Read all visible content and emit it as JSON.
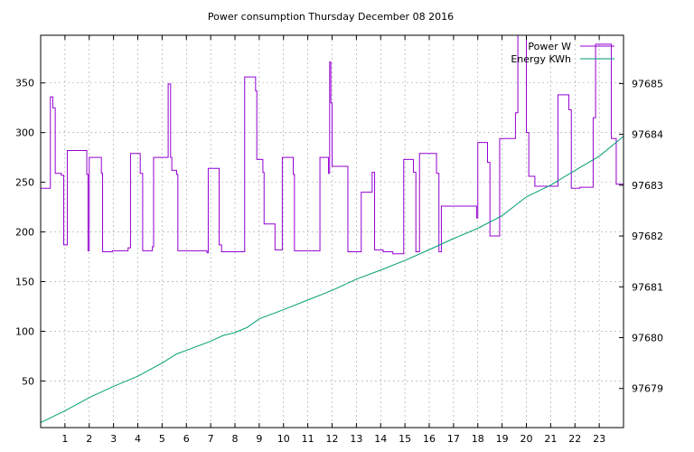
{
  "chart_data": {
    "type": "line",
    "title": "Power consumption Thursday December 08 2016",
    "x_ticks": [
      1,
      2,
      3,
      4,
      5,
      6,
      7,
      8,
      9,
      10,
      11,
      12,
      13,
      14,
      15,
      16,
      17,
      18,
      19,
      20,
      21,
      22,
      23
    ],
    "xlim": [
      0,
      24
    ],
    "y_left_ticks": [
      50,
      100,
      150,
      200,
      250,
      300,
      350
    ],
    "ylim_left": [
      3,
      398
    ],
    "y_right_ticks": [
      97679,
      97680,
      97681,
      97682,
      97683,
      97684,
      97685
    ],
    "ylim_right": [
      97678.23,
      97685.95
    ],
    "grid": true,
    "legend_position": "top-right",
    "series": [
      {
        "name": "Power W",
        "axis": "left",
        "color": "#9400d3",
        "style": "step",
        "points": [
          [
            0.0,
            244
          ],
          [
            0.4,
            244
          ],
          [
            0.4,
            336
          ],
          [
            0.5,
            336
          ],
          [
            0.5,
            325
          ],
          [
            0.6,
            325
          ],
          [
            0.6,
            259
          ],
          [
            0.85,
            259
          ],
          [
            0.85,
            257
          ],
          [
            0.95,
            257
          ],
          [
            0.95,
            187
          ],
          [
            1.1,
            187
          ],
          [
            1.1,
            282
          ],
          [
            1.9,
            282
          ],
          [
            1.9,
            258
          ],
          [
            1.95,
            258
          ],
          [
            1.95,
            181
          ],
          [
            2.0,
            181
          ],
          [
            2.0,
            275
          ],
          [
            2.5,
            275
          ],
          [
            2.5,
            259
          ],
          [
            2.55,
            259
          ],
          [
            2.55,
            180
          ],
          [
            2.95,
            180
          ],
          [
            2.95,
            181
          ],
          [
            3.6,
            181
          ],
          [
            3.6,
            184
          ],
          [
            3.7,
            184
          ],
          [
            3.7,
            279
          ],
          [
            4.1,
            279
          ],
          [
            4.1,
            259
          ],
          [
            4.2,
            259
          ],
          [
            4.2,
            181
          ],
          [
            4.6,
            181
          ],
          [
            4.6,
            185
          ],
          [
            4.65,
            185
          ],
          [
            4.65,
            275
          ],
          [
            5.25,
            275
          ],
          [
            5.25,
            349
          ],
          [
            5.35,
            349
          ],
          [
            5.35,
            275
          ],
          [
            5.4,
            275
          ],
          [
            5.4,
            262
          ],
          [
            5.6,
            262
          ],
          [
            5.6,
            258
          ],
          [
            5.65,
            258
          ],
          [
            5.65,
            181
          ],
          [
            6.85,
            181
          ],
          [
            6.85,
            179
          ],
          [
            6.9,
            179
          ],
          [
            6.9,
            264
          ],
          [
            7.35,
            264
          ],
          [
            7.35,
            187
          ],
          [
            7.45,
            187
          ],
          [
            7.45,
            180
          ],
          [
            8.4,
            180
          ],
          [
            8.4,
            356
          ],
          [
            8.85,
            356
          ],
          [
            8.85,
            342
          ],
          [
            8.9,
            342
          ],
          [
            8.9,
            273
          ],
          [
            9.15,
            273
          ],
          [
            9.15,
            260
          ],
          [
            9.2,
            260
          ],
          [
            9.2,
            208
          ],
          [
            9.65,
            208
          ],
          [
            9.65,
            182
          ],
          [
            9.95,
            182
          ],
          [
            9.95,
            275
          ],
          [
            10.4,
            275
          ],
          [
            10.4,
            258
          ],
          [
            10.45,
            258
          ],
          [
            10.45,
            181
          ],
          [
            11.5,
            181
          ],
          [
            11.5,
            275
          ],
          [
            11.85,
            275
          ],
          [
            11.85,
            259
          ],
          [
            11.9,
            259
          ],
          [
            11.9,
            371
          ],
          [
            11.95,
            371
          ],
          [
            11.95,
            330
          ],
          [
            12.0,
            330
          ],
          [
            12.0,
            266
          ],
          [
            12.65,
            266
          ],
          [
            12.65,
            180
          ],
          [
            13.2,
            180
          ],
          [
            13.2,
            240
          ],
          [
            13.65,
            240
          ],
          [
            13.65,
            260
          ],
          [
            13.75,
            260
          ],
          [
            13.75,
            182
          ],
          [
            14.1,
            182
          ],
          [
            14.1,
            180
          ],
          [
            14.5,
            180
          ],
          [
            14.5,
            178
          ],
          [
            14.95,
            178
          ],
          [
            14.95,
            273
          ],
          [
            15.35,
            273
          ],
          [
            15.35,
            260
          ],
          [
            15.45,
            260
          ],
          [
            15.45,
            180
          ],
          [
            15.6,
            180
          ],
          [
            15.6,
            279
          ],
          [
            16.3,
            279
          ],
          [
            16.3,
            259
          ],
          [
            16.4,
            259
          ],
          [
            16.4,
            180
          ],
          [
            16.5,
            180
          ],
          [
            16.5,
            226
          ],
          [
            17.95,
            226
          ],
          [
            17.95,
            214
          ],
          [
            18.0,
            214
          ],
          [
            18.0,
            290
          ],
          [
            18.4,
            290
          ],
          [
            18.4,
            270
          ],
          [
            18.5,
            270
          ],
          [
            18.5,
            196
          ],
          [
            18.9,
            196
          ],
          [
            18.9,
            294
          ],
          [
            19.55,
            294
          ],
          [
            19.55,
            320
          ],
          [
            19.65,
            320
          ],
          [
            19.65,
            398
          ],
          [
            20.0,
            398
          ],
          [
            20.0,
            300
          ],
          [
            20.1,
            300
          ],
          [
            20.1,
            256
          ],
          [
            20.35,
            256
          ],
          [
            20.35,
            246
          ],
          [
            21.3,
            246
          ],
          [
            21.3,
            338
          ],
          [
            21.75,
            338
          ],
          [
            21.75,
            323
          ],
          [
            21.85,
            323
          ],
          [
            21.85,
            244
          ],
          [
            22.2,
            244
          ],
          [
            22.2,
            245
          ],
          [
            22.75,
            245
          ],
          [
            22.75,
            315
          ],
          [
            22.85,
            315
          ],
          [
            22.85,
            389
          ],
          [
            23.5,
            389
          ],
          [
            23.5,
            294
          ],
          [
            23.7,
            294
          ],
          [
            23.7,
            248
          ],
          [
            24.0,
            248
          ]
        ]
      },
      {
        "name": "Energy KWh",
        "axis": "right",
        "color": "#009e73",
        "style": "line",
        "points": [
          [
            0.0,
            97678.33
          ],
          [
            1.0,
            97678.56
          ],
          [
            2.0,
            97678.82
          ],
          [
            3.0,
            97679.04
          ],
          [
            4.0,
            97679.24
          ],
          [
            5.0,
            97679.5
          ],
          [
            5.6,
            97679.68
          ],
          [
            6.0,
            97679.75
          ],
          [
            7.0,
            97679.93
          ],
          [
            7.5,
            97680.04
          ],
          [
            8.0,
            97680.1
          ],
          [
            8.5,
            97680.2
          ],
          [
            9.0,
            97680.37
          ],
          [
            10.0,
            97680.55
          ],
          [
            11.0,
            97680.74
          ],
          [
            12.0,
            97680.93
          ],
          [
            13.0,
            97681.15
          ],
          [
            14.0,
            97681.33
          ],
          [
            15.0,
            97681.52
          ],
          [
            16.0,
            97681.73
          ],
          [
            17.0,
            97681.95
          ],
          [
            18.0,
            97682.15
          ],
          [
            19.0,
            97682.4
          ],
          [
            20.0,
            97682.77
          ],
          [
            21.0,
            97683.0
          ],
          [
            22.0,
            97683.29
          ],
          [
            23.0,
            97683.57
          ],
          [
            24.0,
            97683.96
          ]
        ]
      }
    ]
  }
}
